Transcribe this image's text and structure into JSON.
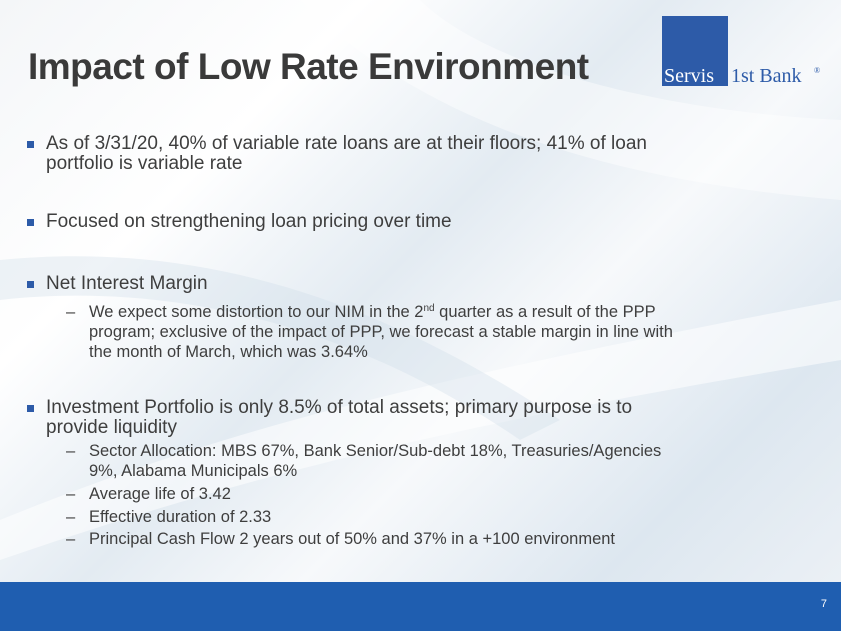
{
  "slide": {
    "title": "Impact of Low Rate Environment",
    "page_number": "7"
  },
  "logo": {
    "left_text": "Servis",
    "right_text": "1st Bank",
    "reg_mark": "®",
    "brand_color": "#2d5ba8"
  },
  "bullets": [
    {
      "line1": "As of 3/31/20, 40% of variable rate loans are at their floors; 41% of loan",
      "line2": "portfolio is variable rate"
    },
    {
      "line1": "Focused on strengthening loan pricing over time"
    },
    {
      "line1": "Net Interest Margin",
      "subs": [
        {
          "pre": "We expect some distortion to our NIM in the 2",
          "sup": "nd",
          "post": " quarter as a result of the PPP",
          "line2": "program; exclusive of the impact of PPP, we forecast a stable margin in line with",
          "line3": "the month of March, which was 3.64%"
        }
      ]
    },
    {
      "line1": "Investment Portfolio is only 8.5% of total assets; primary purpose is to",
      "line2": "provide liquidity",
      "subs": [
        {
          "line1": "Sector Allocation: MBS 67%, Bank Senior/Sub-debt 18%, Treasuries/Agencies",
          "line2": "9%, Alabama Municipals 6%"
        },
        {
          "line1": "Average life of 3.42"
        },
        {
          "line1": "Effective duration of 2.33"
        },
        {
          "line1": "Principal Cash Flow 2 years out of 50% and 37% in a +100 environment"
        }
      ]
    }
  ],
  "dash_glyph": "–",
  "footer_color": "#1f5eb0"
}
